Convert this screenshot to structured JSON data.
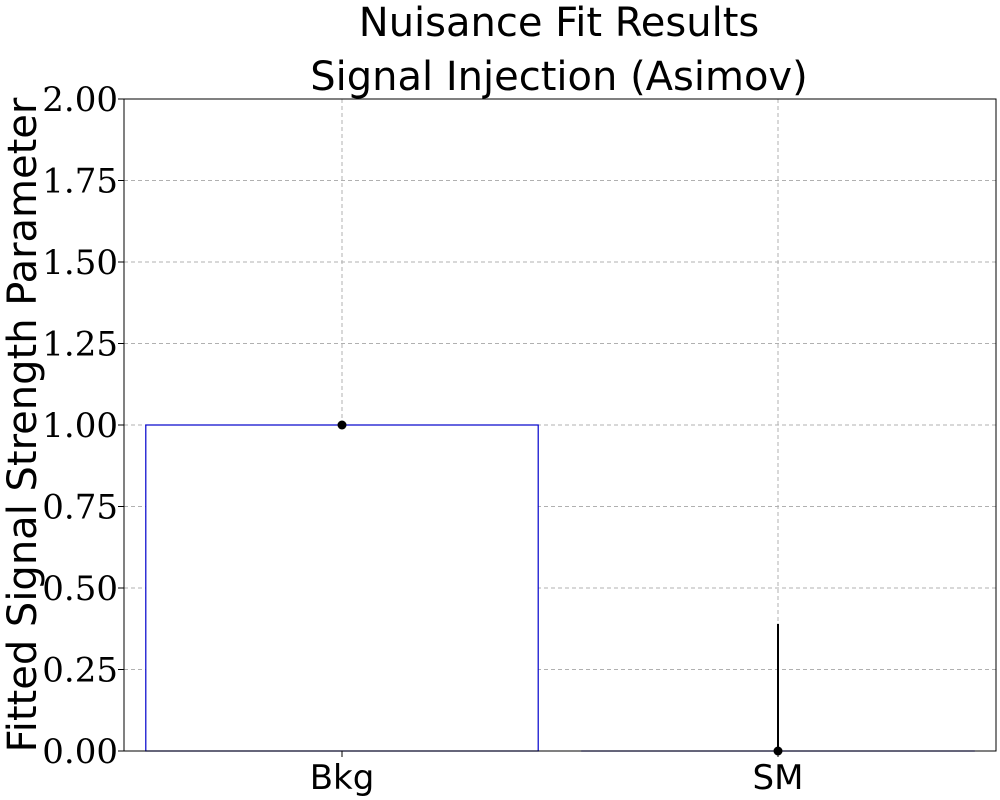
{
  "chart_data": {
    "type": "bar",
    "title": [
      "Nuisance Fit Results",
      "Signal Injection (Asimov)"
    ],
    "xlabel": "",
    "ylabel": "Fitted Signal Strength Parameter",
    "categories": [
      "Bkg",
      "SM"
    ],
    "values": [
      1.0,
      0.0
    ],
    "errors": [
      0.0,
      0.39
    ],
    "ylim": [
      0,
      2.0
    ],
    "yticks": [
      "0.00",
      "0.25",
      "0.50",
      "0.75",
      "1.00",
      "1.25",
      "1.50",
      "1.75",
      "2.00"
    ],
    "grid": true,
    "bar_edge_color": "#0000cc",
    "bar_fill_color": "#ffffff",
    "marker_color": "#000000"
  }
}
